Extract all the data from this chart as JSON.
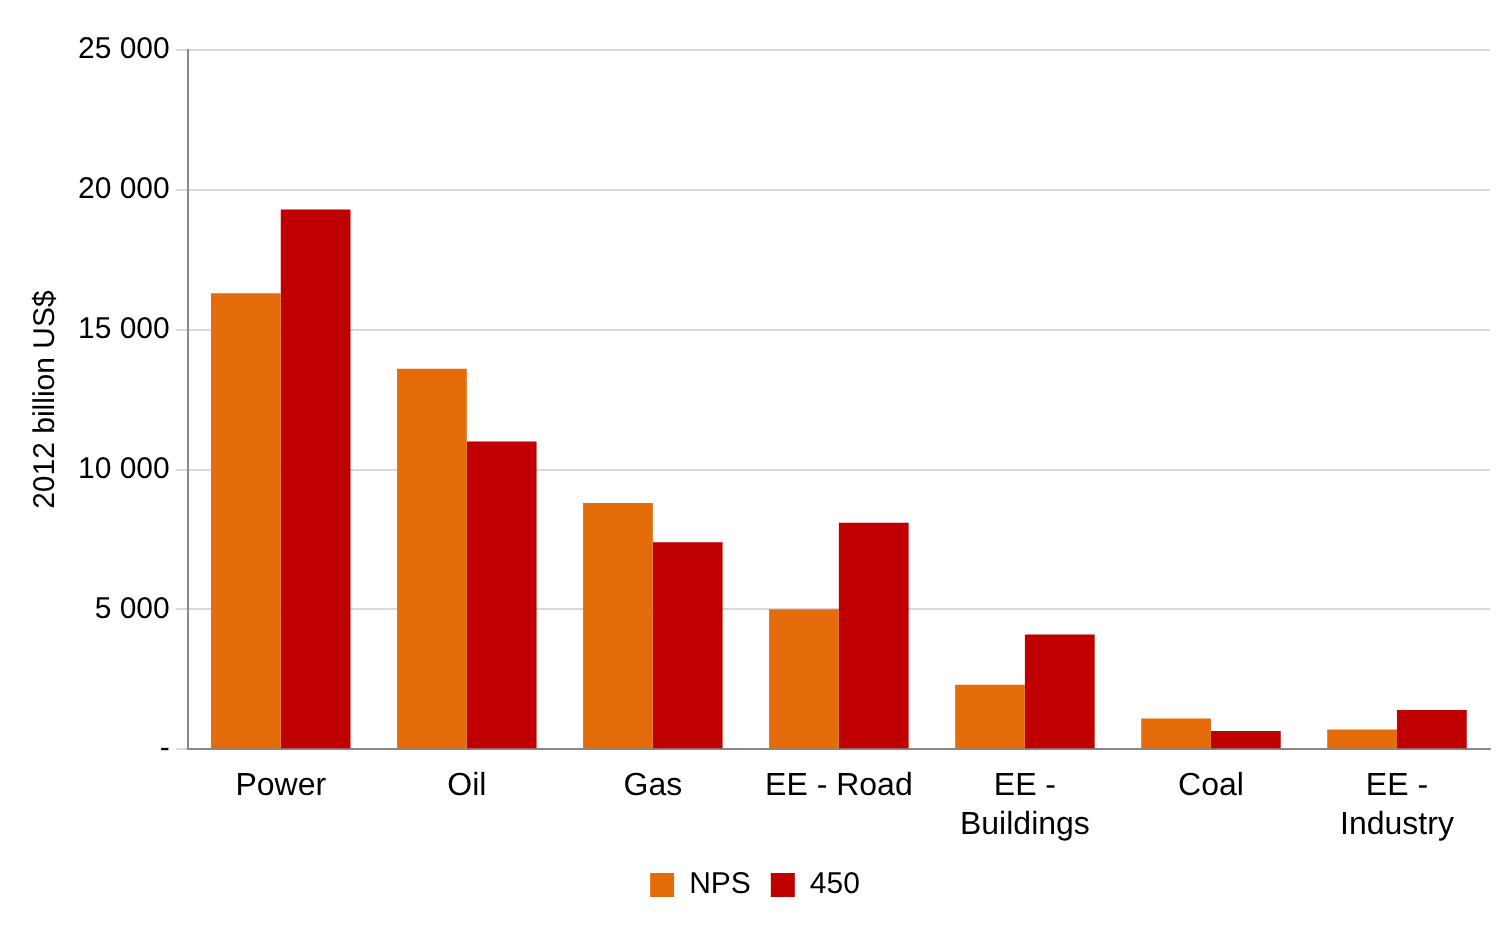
{
  "chart_data": {
    "type": "bar",
    "ylabel": "2012 billion US$",
    "categories": [
      "Power",
      "Oil",
      "Gas",
      "EE - Road",
      "EE - Buildings",
      "Coal",
      "EE - Industry"
    ],
    "series": [
      {
        "name": "NPS",
        "color": "#e46c0a",
        "values": [
          16300,
          13600,
          8800,
          5000,
          2300,
          1100,
          700
        ]
      },
      {
        "name": "450",
        "color": "#c00000",
        "values": [
          19300,
          11000,
          7400,
          8100,
          4100,
          650,
          1400
        ]
      }
    ],
    "ylim": [
      0,
      25000
    ],
    "yticks": [
      {
        "value": 0,
        "label": "-"
      },
      {
        "value": 5000,
        "label": "5 000"
      },
      {
        "value": 10000,
        "label": "10 000"
      },
      {
        "value": 15000,
        "label": "15 000"
      },
      {
        "value": 20000,
        "label": "20 000"
      },
      {
        "value": 25000,
        "label": "25 000"
      }
    ],
    "grid": "y",
    "legend": "bottom"
  }
}
